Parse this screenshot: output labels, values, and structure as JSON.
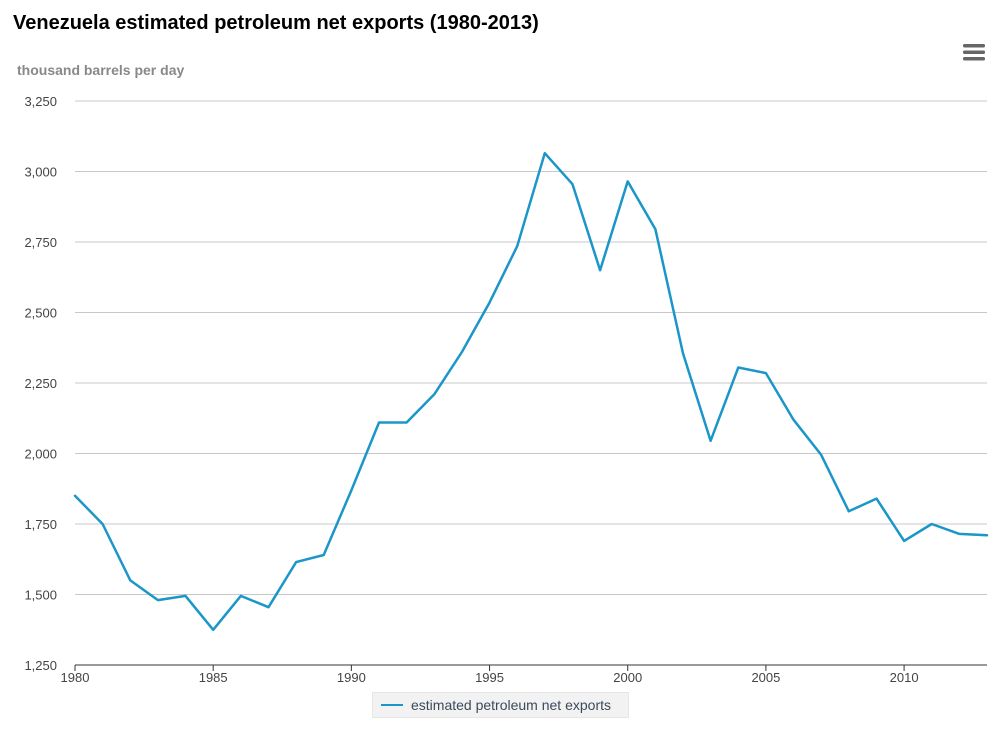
{
  "menu": {
    "icon": "hamburger-menu-icon"
  },
  "colors": {
    "series": "#1a96c8",
    "grid": "#c8c8c8",
    "axis": "#333333"
  },
  "chart_data": {
    "type": "line",
    "title": "Venezuela estimated petroleum net exports (1980-2013)",
    "ylabel": "thousand barrels per day",
    "xlabel": "",
    "ylim": [
      1250,
      3250
    ],
    "xlim": [
      1980,
      2013
    ],
    "yticks": [
      1250,
      1500,
      1750,
      2000,
      2250,
      2500,
      2750,
      3000,
      3250
    ],
    "ytick_labels": [
      "1,250",
      "1,500",
      "1,750",
      "2,000",
      "2,250",
      "2,500",
      "2,750",
      "3,000",
      "3,250"
    ],
    "xticks": [
      1980,
      1985,
      1990,
      1995,
      2000,
      2005,
      2010
    ],
    "xtick_labels": [
      "1980",
      "1985",
      "1990",
      "1995",
      "2000",
      "2005",
      "2010"
    ],
    "grid": true,
    "legend_position": "bottom-center",
    "series": [
      {
        "name": "estimated petroleum net exports",
        "x": [
          1980,
          1981,
          1982,
          1983,
          1984,
          1985,
          1986,
          1987,
          1988,
          1989,
          1990,
          1991,
          1992,
          1993,
          1994,
          1995,
          1996,
          1997,
          1998,
          1999,
          2000,
          2001,
          2002,
          2003,
          2004,
          2005,
          2006,
          2007,
          2008,
          2009,
          2010,
          2011,
          2012,
          2013
        ],
        "values": [
          1850,
          1750,
          1550,
          1480,
          1495,
          1375,
          1495,
          1455,
          1615,
          1640,
          1870,
          2110,
          2110,
          2210,
          2360,
          2535,
          2735,
          3065,
          2955,
          2650,
          2965,
          2795,
          2355,
          2045,
          2305,
          2285,
          2120,
          1995,
          1795,
          1840,
          1690,
          1750,
          1715,
          1710
        ]
      }
    ]
  }
}
